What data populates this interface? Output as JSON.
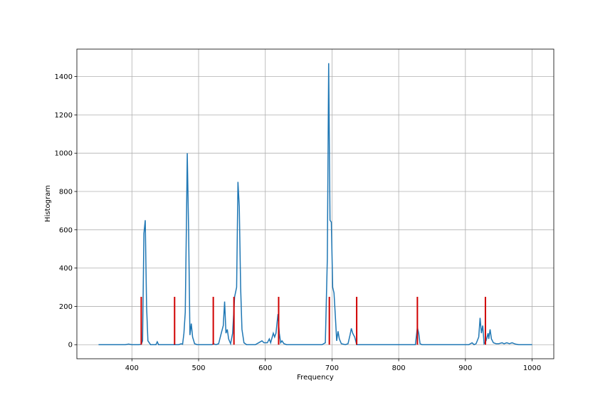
{
  "chart_data": {
    "type": "line",
    "x_label": "Frequency",
    "y_label": "Histogram",
    "xlim": [
      317.5,
      1032.5
    ],
    "ylim": [
      -73.5,
      1543.5
    ],
    "xticks": [
      400,
      500,
      600,
      700,
      800,
      900,
      1000
    ],
    "yticks": [
      0,
      200,
      400,
      600,
      800,
      1000,
      1200,
      1400
    ],
    "grid": true,
    "series": [
      {
        "color": "#1f77b4",
        "x": [
          350,
          390,
          395,
          400,
          410,
          414,
          416,
          418,
          420,
          422,
          424,
          428,
          436,
          438,
          440,
          470,
          474,
          476,
          478,
          480,
          482,
          483,
          485,
          487,
          489,
          491,
          494,
          498,
          520,
          522,
          526,
          530,
          534,
          537,
          539,
          541,
          543,
          545,
          548,
          551,
          554,
          557,
          559,
          561,
          563,
          565,
          568,
          572,
          585,
          590,
          595,
          598,
          603,
          606,
          608,
          612,
          614,
          616,
          619,
          621,
          623,
          625,
          628,
          632,
          685,
          690,
          693,
          695,
          697,
          699,
          701,
          703,
          705,
          707,
          709,
          711,
          714,
          720,
          724,
          727,
          729,
          731,
          734,
          737,
          740,
          825,
          828,
          830,
          832,
          835,
          905,
          910,
          913,
          916,
          920,
          922,
          924,
          926,
          928,
          931,
          934,
          935,
          937,
          939,
          942,
          946,
          950,
          955,
          958,
          962,
          966,
          970,
          975,
          980,
          1000
        ],
        "values": [
          0,
          0,
          3,
          0,
          0,
          2,
          20,
          580,
          650,
          200,
          20,
          0,
          0,
          15,
          0,
          0,
          5,
          2,
          60,
          170,
          700,
          1000,
          600,
          50,
          110,
          40,
          5,
          0,
          0,
          5,
          0,
          5,
          60,
          100,
          225,
          60,
          80,
          30,
          5,
          60,
          250,
          300,
          850,
          720,
          300,
          80,
          10,
          0,
          0,
          10,
          20,
          10,
          10,
          30,
          10,
          60,
          40,
          60,
          160,
          60,
          10,
          20,
          5,
          0,
          0,
          10,
          450,
          1470,
          650,
          640,
          300,
          270,
          150,
          20,
          70,
          30,
          5,
          0,
          5,
          50,
          85,
          60,
          40,
          0,
          0,
          0,
          90,
          60,
          5,
          0,
          0,
          10,
          0,
          5,
          40,
          140,
          60,
          100,
          5,
          20,
          60,
          30,
          80,
          30,
          10,
          5,
          5,
          10,
          5,
          10,
          5,
          10,
          3,
          0,
          0
        ]
      }
    ],
    "vlines": {
      "color": "#d00000",
      "x": [
        414,
        464,
        522,
        553,
        620,
        696,
        737,
        828,
        930
      ],
      "ymin": 0,
      "ymax": 250
    }
  }
}
